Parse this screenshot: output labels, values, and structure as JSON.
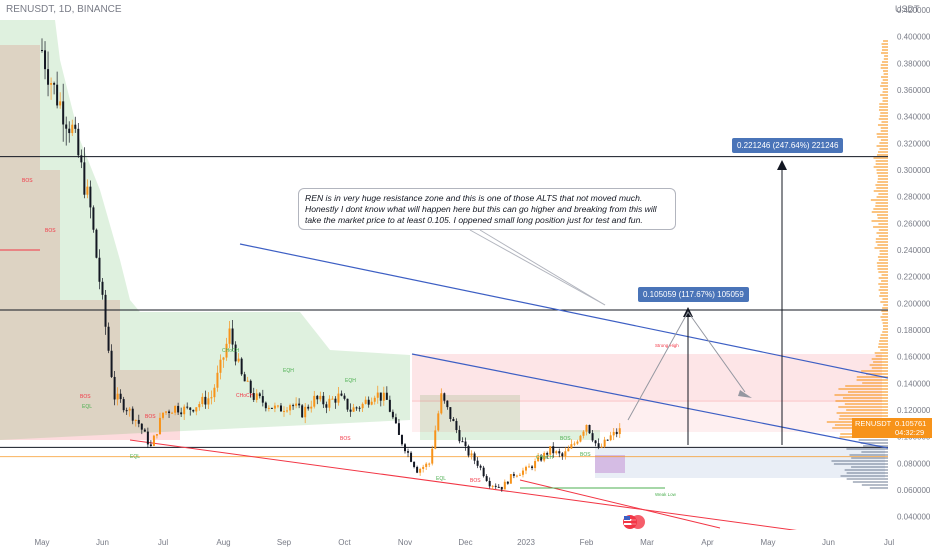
{
  "header": {
    "symbol_line": "RENUSDT, 1D, BINANCE",
    "currency": "USDT"
  },
  "annotations": {
    "callout_text": "REN is in very huge resistance zone and this is one of those ALTS that not moved much. Honestly I dont know what will happen here but this can go higher and breaking from this will take the market price to at least 0.105. I oppened small long position just for test and fun.",
    "target_high": "0.221246 (247.64%) 221246",
    "target_low": "0.105059 (117.67%) 105059",
    "symbol_tag": "RENUSDT",
    "last_price": "0.105761",
    "countdown": "04:32:29",
    "choch_labels": [
      "CHoCH",
      "CHoCH",
      "CHoCH"
    ],
    "bos_labels": [
      "BOS",
      "BOS",
      "BOS",
      "BOS",
      "BOS",
      "BOS",
      "BOS",
      "BOS"
    ],
    "eq_labels": [
      "EQL",
      "EQL",
      "EQH",
      "EQH",
      "EQL"
    ],
    "strong_high": "Strong High",
    "weak_low": "Weak Low"
  },
  "colors": {
    "up_candle": "#f7931a",
    "down_candle": "#131722",
    "supertrend_up": "#4caf50",
    "supertrend_down": "#f23645",
    "trendline": "#3d5fc4",
    "channel_red": "#f23645"
  },
  "chart_data": {
    "type": "line",
    "title": "RENUSDT, 1D, BINANCE",
    "xlabel": "",
    "ylabel": "",
    "y_unit": "USDT",
    "ylim": [
      0.03,
      0.42
    ],
    "grid": false,
    "x_ticks": [
      "May",
      "Jun",
      "Jul",
      "Aug",
      "Sep",
      "Oct",
      "Nov",
      "Dec",
      "2023",
      "Feb",
      "Mar",
      "Apr",
      "May",
      "Jun",
      "Jul"
    ],
    "y_ticks": [
      0.04,
      0.06,
      0.08,
      0.1,
      0.12,
      0.14,
      0.16,
      0.18,
      0.2,
      0.22,
      0.24,
      0.26,
      0.28,
      0.3,
      0.32,
      0.34,
      0.36,
      0.38,
      0.4,
      0.42
    ],
    "y_tick_labels": [
      "0.040000",
      "0.060000",
      "0.080000",
      "0.100000",
      "0.120000",
      "0.140000",
      "0.160000",
      "0.180000",
      "0.200000",
      "0.220000",
      "0.240000",
      "0.260000",
      "0.280000",
      "0.300000",
      "0.320000",
      "0.340000",
      "0.360000",
      "0.380000",
      "0.400000",
      "0.420000"
    ],
    "series": [
      {
        "name": "RENUSDT",
        "x_month": [
          0,
          0.2,
          0.5,
          0.8,
          1.0,
          1.2,
          1.4,
          1.6,
          1.8,
          2.0,
          2.2,
          2.4,
          2.6,
          2.8,
          3.0,
          3.1,
          3.3,
          3.5,
          3.7,
          3.9,
          4.1,
          4.3,
          4.5,
          4.7,
          4.9,
          5.1,
          5.3,
          5.5,
          5.7,
          5.9,
          6.0,
          6.2,
          6.4,
          6.6,
          6.8,
          7.0,
          7.2,
          7.4,
          7.6,
          7.8,
          8.0,
          8.2,
          8.4,
          8.6,
          8.8,
          9.0,
          9.2,
          9.4,
          9.6
        ],
        "close": [
          0.39,
          0.36,
          0.33,
          0.27,
          0.2,
          0.13,
          0.122,
          0.11,
          0.092,
          0.118,
          0.122,
          0.12,
          0.125,
          0.13,
          0.16,
          0.178,
          0.145,
          0.13,
          0.125,
          0.12,
          0.125,
          0.118,
          0.128,
          0.125,
          0.13,
          0.12,
          0.124,
          0.133,
          0.127,
          0.1,
          0.092,
          0.075,
          0.08,
          0.13,
          0.11,
          0.09,
          0.08,
          0.065,
          0.062,
          0.072,
          0.075,
          0.082,
          0.09,
          0.085,
          0.095,
          0.11,
          0.09,
          0.1,
          0.106
        ]
      }
    ],
    "levels": [
      {
        "value": 0.31
      },
      {
        "value": 0.195
      },
      {
        "value": 0.092
      }
    ],
    "projection_targets": [
      0.221246,
      0.105059
    ],
    "last_price": 0.105761
  }
}
